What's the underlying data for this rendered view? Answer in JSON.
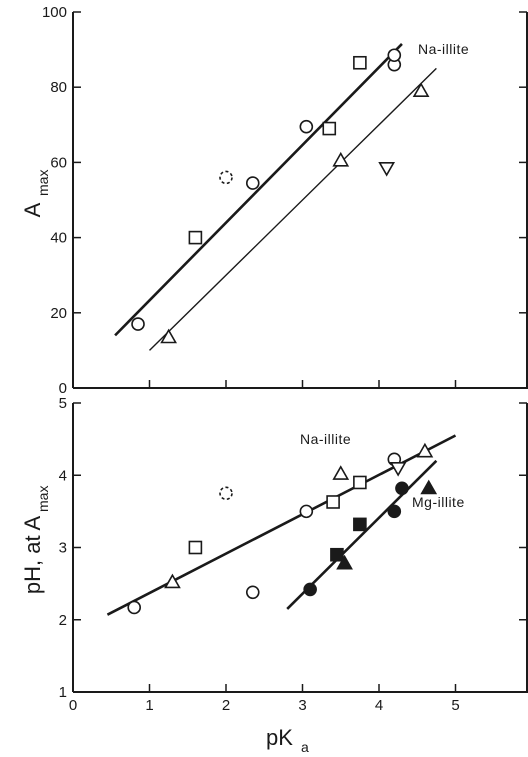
{
  "chart_data": [
    {
      "type": "scatter",
      "panel": "top",
      "xlim": [
        0,
        6
      ],
      "ylim": [
        0,
        100
      ],
      "yticks": [
        0,
        20,
        40,
        60,
        80,
        100
      ],
      "ytick_labels": [
        "0",
        "20",
        "40",
        "60",
        "80",
        "100"
      ],
      "ylabel_main": "A",
      "ylabel_sub": "max",
      "annotation": "Na-illite",
      "series": [
        {
          "marker": "circle-open",
          "points": [
            [
              0.85,
              17
            ],
            [
              2.35,
              54.5
            ],
            [
              3.05,
              69.5
            ],
            [
              4.2,
              86
            ],
            [
              4.2,
              88.5
            ]
          ]
        },
        {
          "marker": "circle-dashed",
          "points": [
            [
              2.0,
              56
            ]
          ]
        },
        {
          "marker": "square-open",
          "points": [
            [
              1.6,
              40
            ],
            [
              3.35,
              69
            ],
            [
              3.75,
              86.5
            ]
          ]
        },
        {
          "marker": "triangle-up-open",
          "points": [
            [
              1.25,
              13.5
            ],
            [
              3.5,
              60.5
            ],
            [
              4.55,
              79
            ]
          ]
        },
        {
          "marker": "triangle-down-open",
          "points": [
            [
              4.1,
              58.5
            ]
          ]
        }
      ],
      "fit_lines": [
        {
          "style": "thick",
          "x": [
            0.55,
            4.3
          ],
          "y": [
            14,
            91.5
          ]
        },
        {
          "style": "thin",
          "x": [
            1.0,
            4.75
          ],
          "y": [
            10,
            85
          ]
        }
      ]
    },
    {
      "type": "scatter",
      "panel": "bottom",
      "xlim": [
        0,
        6
      ],
      "ylim": [
        1,
        5
      ],
      "xticks": [
        0,
        1,
        2,
        3,
        4,
        5
      ],
      "xtick_labels": [
        "0",
        "1",
        "2",
        "3",
        "4",
        "5"
      ],
      "yticks": [
        1,
        2,
        3,
        4,
        5
      ],
      "ytick_labels": [
        "1",
        "2",
        "3",
        "4",
        "5"
      ],
      "xlabel_main": "pK",
      "xlabel_sub": "a",
      "ylabel_main": "pH, at A",
      "ylabel_sub": "max",
      "annotations": [
        "Na-illite",
        "Mg-illite"
      ],
      "series": [
        {
          "marker": "circle-open",
          "points": [
            [
              0.8,
              2.17
            ],
            [
              2.35,
              2.38
            ],
            [
              3.05,
              3.5
            ],
            [
              4.2,
              4.22
            ]
          ]
        },
        {
          "marker": "circle-dashed",
          "points": [
            [
              2.0,
              3.75
            ]
          ]
        },
        {
          "marker": "square-open",
          "points": [
            [
              1.6,
              3.0
            ],
            [
              3.4,
              3.63
            ],
            [
              3.75,
              3.9
            ]
          ]
        },
        {
          "marker": "triangle-up-open",
          "points": [
            [
              1.3,
              2.52
            ],
            [
              3.5,
              4.02
            ],
            [
              4.6,
              4.33
            ]
          ]
        },
        {
          "marker": "triangle-down-open",
          "points": [
            [
              4.25,
              4.1
            ]
          ]
        },
        {
          "marker": "circle-filled",
          "points": [
            [
              3.1,
              2.42
            ],
            [
              4.2,
              3.5
            ],
            [
              4.3,
              3.82
            ]
          ]
        },
        {
          "marker": "square-filled",
          "points": [
            [
              3.45,
              2.9
            ],
            [
              3.75,
              3.32
            ]
          ]
        },
        {
          "marker": "triangle-up-filled",
          "points": [
            [
              3.55,
              2.78
            ],
            [
              4.65,
              3.82
            ]
          ]
        }
      ],
      "fit_lines": [
        {
          "style": "thick",
          "x": [
            0.45,
            5.0
          ],
          "y": [
            2.07,
            4.55
          ]
        },
        {
          "style": "thick",
          "x": [
            2.8,
            4.75
          ],
          "y": [
            2.15,
            4.2
          ]
        }
      ]
    }
  ]
}
